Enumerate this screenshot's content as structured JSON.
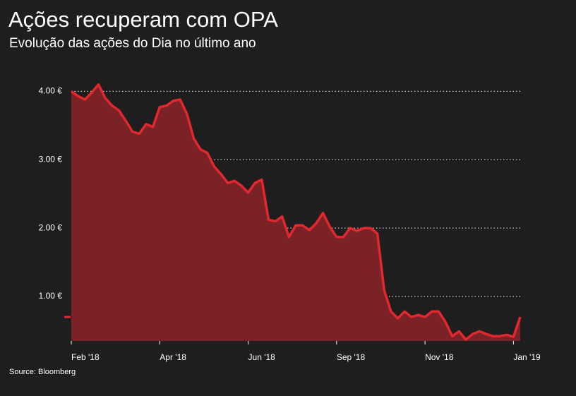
{
  "chart_data": {
    "type": "area",
    "title": "Ações recuperam com OPA",
    "subtitle": "Evolução das ações do Dia no último ano",
    "source": "Source: Bloomberg",
    "categories": [
      "Feb '18",
      null,
      null,
      null,
      null,
      null,
      null,
      null,
      null,
      null,
      null,
      null,
      null,
      "Apr '18",
      null,
      null,
      null,
      null,
      null,
      null,
      null,
      null,
      null,
      null,
      null,
      null,
      "Jun '18",
      null,
      null,
      null,
      null,
      null,
      null,
      null,
      null,
      null,
      null,
      null,
      null,
      "Sep '18",
      null,
      null,
      null,
      null,
      null,
      null,
      null,
      null,
      null,
      null,
      null,
      null,
      "Nov '18",
      null,
      null,
      null,
      null,
      null,
      null,
      null,
      null,
      null,
      null,
      null,
      null,
      "Jan '19",
      null
    ],
    "series": [
      {
        "name": "Dia",
        "color": "#e0282e",
        "fill": "#7a2226",
        "values": [
          4.0,
          3.93,
          3.88,
          3.98,
          4.1,
          3.9,
          3.79,
          3.72,
          3.57,
          3.41,
          3.38,
          3.52,
          3.48,
          3.77,
          3.79,
          3.86,
          3.88,
          3.67,
          3.31,
          3.15,
          3.1,
          2.9,
          2.79,
          2.66,
          2.69,
          2.62,
          2.52,
          2.66,
          2.71,
          2.12,
          2.1,
          2.17,
          1.87,
          2.04,
          2.04,
          1.97,
          2.07,
          2.22,
          2.02,
          1.87,
          1.87,
          2.0,
          1.96,
          2.0,
          2.0,
          1.92,
          1.09,
          0.78,
          0.68,
          0.78,
          0.7,
          0.73,
          0.7,
          0.78,
          0.78,
          0.63,
          0.42,
          0.49,
          0.37,
          0.45,
          0.49,
          0.45,
          0.42,
          0.42,
          0.44,
          0.41,
          0.7
        ]
      }
    ],
    "ylim": [
      0.35,
      4.2
    ],
    "yticks": [
      {
        "value": 1,
        "label": "1.00 €"
      },
      {
        "value": 2,
        "label": "2.00 €"
      },
      {
        "value": 3,
        "label": "3.00 €"
      },
      {
        "value": 4,
        "label": "4.00 €"
      }
    ],
    "grid": true
  }
}
